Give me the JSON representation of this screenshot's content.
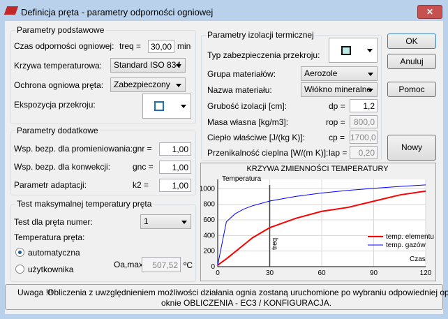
{
  "window": {
    "title": "Definicja pręta - parametry odporności ogniowej"
  },
  "basic": {
    "legend": "Parametry podstawowe",
    "time_label": "Czas odporności ogniowej:",
    "treq_label": "treq =",
    "treq_value": "30,00",
    "treq_unit": "min",
    "curve_label": "Krzywa temperaturowa:",
    "curve_value": "Standard ISO 834",
    "protection_label": "Ochrona ogniowa pręta:",
    "protection_value": "Zabezpieczony",
    "exposure_label": "Ekspozycja przekroju:"
  },
  "additional": {
    "legend": "Parametry dodatkowe",
    "rows": [
      [
        "Wsp. bezp. dla promieniowania:",
        "gnr =",
        "1,00"
      ],
      [
        "Wsp. bezp. dla konwekcji:",
        "gnc =",
        "1,00"
      ],
      [
        "Parametr adaptacji:",
        "k2 =",
        "1,00"
      ]
    ]
  },
  "test": {
    "legend": "Test maksymalnej temperatury pręta",
    "member_label": "Test dla pręta numer:",
    "member_value": "1",
    "temp_label": "Temperatura pręta:",
    "options": [
      "automatyczna",
      "użytkownika"
    ],
    "result_label": "Oa,max =",
    "result_value": "507,52",
    "result_unit": "ºC"
  },
  "insulation": {
    "legend": "Parametry izolacji termicznej",
    "type_label": "Typ zabezpieczenia przekroju:",
    "group_label": "Grupa materiałów:",
    "group_value": "Aerozole",
    "name_label": "Nazwa materiału:",
    "name_value": "Włókno mineralne",
    "rows": [
      [
        "Grubość izolacji [cm]:",
        "dp =",
        "1,2"
      ],
      [
        "Masa własna [kg/m3]:",
        "rop =",
        "800,0"
      ],
      [
        "Ciepło właściwe [J/(kg K)]:",
        "cp =",
        "1700,0"
      ],
      [
        "Przenikalność cieplna  [W/(m K)]:",
        "lap =",
        "0,20"
      ]
    ]
  },
  "buttons": [
    "OK",
    "Anuluj",
    "Pomoc",
    "Nowy materiał"
  ],
  "chart_data": {
    "type": "line",
    "title": "KRZYWA ZMIENNOŚCI TEMPERATURY",
    "y_label": "Temperatura",
    "x_label": "Czas",
    "x": [
      0,
      5,
      10,
      15,
      20,
      30,
      45,
      60,
      75,
      90,
      105,
      120
    ],
    "series": [
      {
        "name": "temp. elementu",
        "color": "#ff0000",
        "values": [
          20,
          100,
          190,
          280,
          370,
          500,
          620,
          710,
          760,
          840,
          920,
          970
        ]
      },
      {
        "name": "temp. gazów",
        "color": "#0000ff",
        "values": [
          20,
          576,
          678,
          739,
          781,
          842,
          902,
          945,
          979,
          1006,
          1029,
          1049
        ]
      }
    ],
    "xlim": [
      0,
      120
    ],
    "ylim": [
      0,
      1120
    ],
    "xticks": [
      0,
      30,
      60,
      90,
      120
    ],
    "yticks": [
      0,
      200,
      400,
      600,
      800,
      1000
    ],
    "grid": true,
    "marker": {
      "label": "treq",
      "value": 30
    }
  },
  "note": {
    "label": "Uwaga !!!",
    "lines": [
      "Obliczenia z uwzględnieniem możliwości działania ognia zostaną uruchomione po wybraniu odpowiedniej opcji w",
      "oknie OBLICZENIA - EC3 / KONFIGURACJA."
    ]
  }
}
